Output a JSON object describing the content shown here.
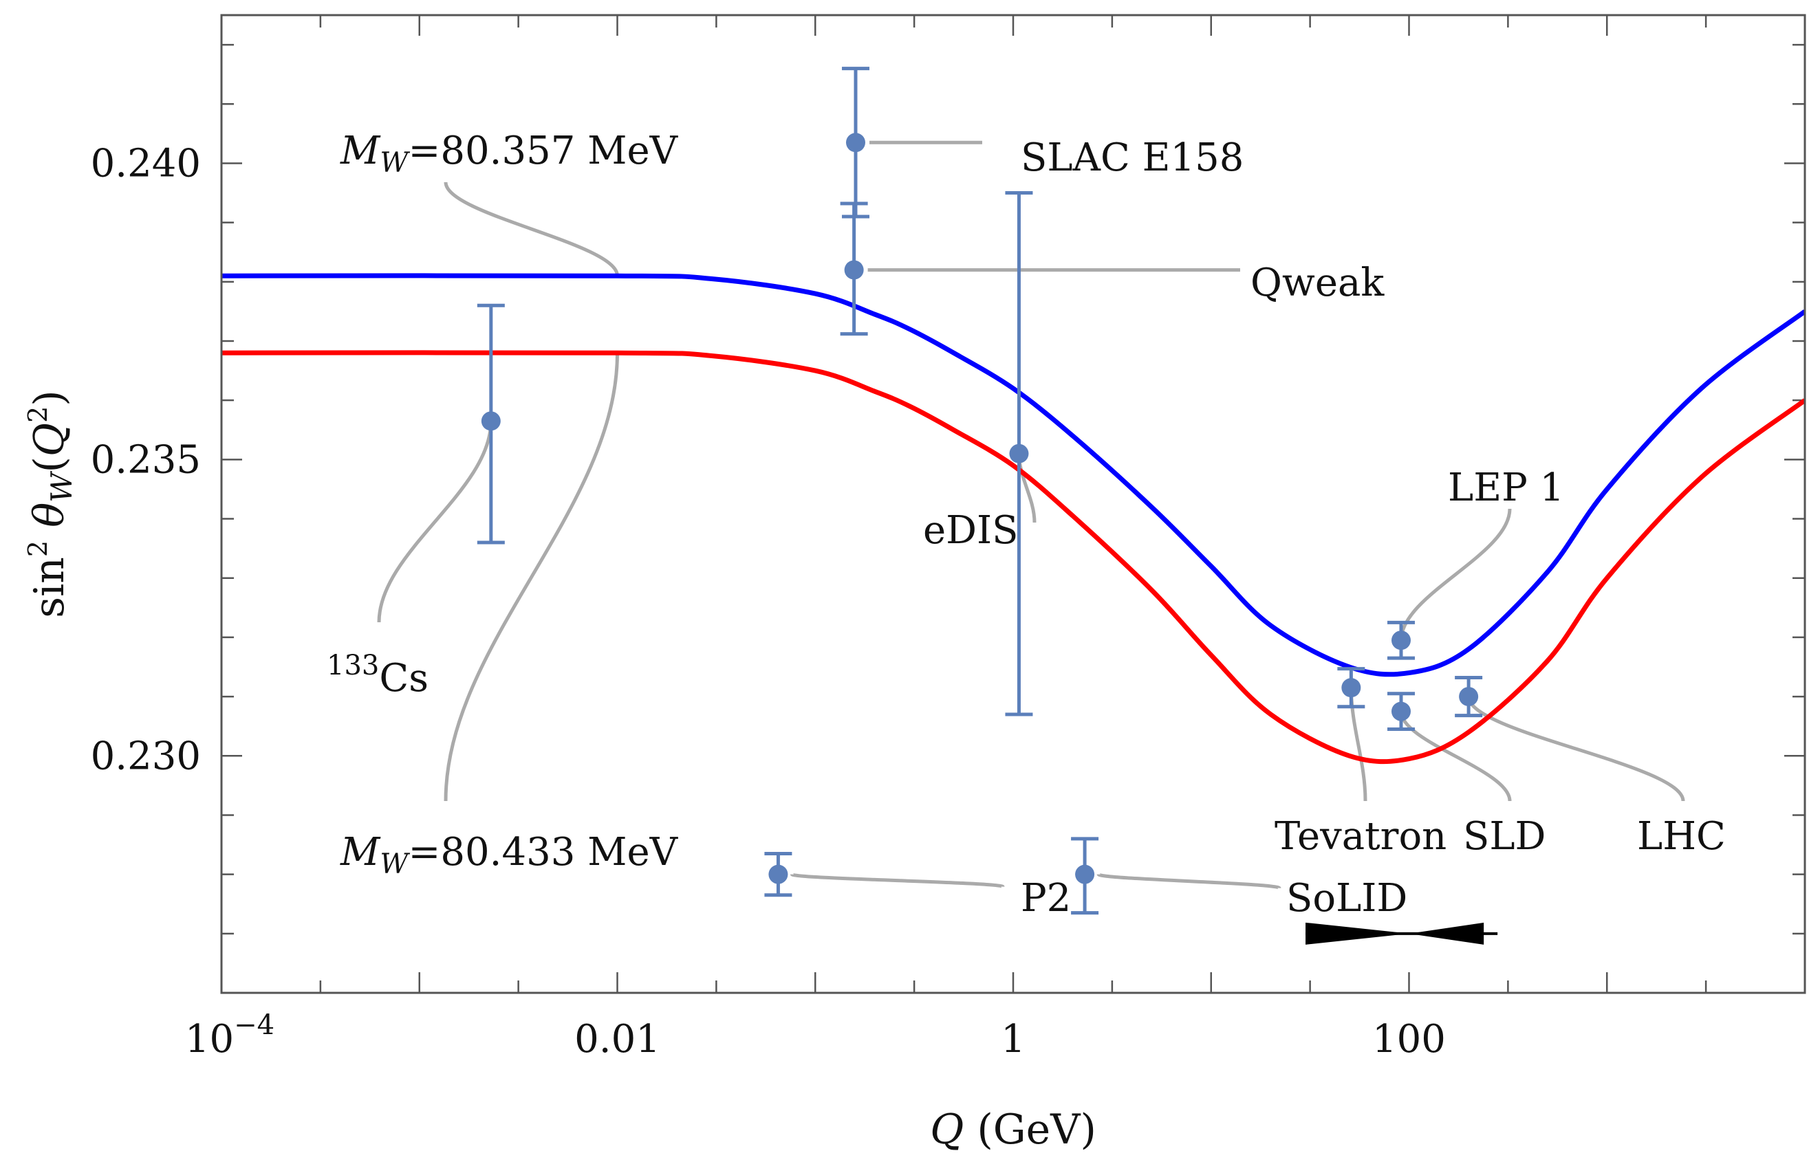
{
  "chart_data": {
    "type": "scatter",
    "title": "",
    "xlabel": "Q (GeV)",
    "ylabel": "sin² θW(Q²)",
    "xscale": "log",
    "xlim": [
      0.0001,
      10000
    ],
    "ylim": [
      0.226,
      0.2425
    ],
    "x_ticks": [
      {
        "value": 0.0001,
        "base": "10",
        "exp": "−4"
      },
      {
        "value": 0.01,
        "text": "0.01"
      },
      {
        "value": 1,
        "text": "1"
      },
      {
        "value": 100,
        "text": "100"
      }
    ],
    "y_ticks": [
      {
        "value": 0.23,
        "text": "0.230"
      },
      {
        "value": 0.235,
        "text": "0.235"
      },
      {
        "value": 0.24,
        "text": "0.240"
      }
    ],
    "curves": [
      {
        "name": "M_W=80.357 MeV",
        "math": "M",
        "math_sub": "W",
        "value_text": "=80.357 MeV",
        "color": "#0000ff",
        "low_Q_value": 0.2381,
        "points": [
          [
            0.0001,
            0.2381
          ],
          [
            0.01,
            0.2381
          ],
          [
            0.03,
            0.23805
          ],
          [
            0.1,
            0.2378
          ],
          [
            0.2,
            0.23745
          ],
          [
            0.3,
            0.2372
          ],
          [
            0.5,
            0.2368
          ],
          [
            1,
            0.2362
          ],
          [
            2,
            0.2354
          ],
          [
            5,
            0.2342
          ],
          [
            10,
            0.2332
          ],
          [
            20,
            0.2322
          ],
          [
            50,
            0.2315
          ],
          [
            100,
            0.2314
          ],
          [
            200,
            0.2318
          ],
          [
            500,
            0.2331
          ],
          [
            1000,
            0.2345
          ],
          [
            3000,
            0.2362
          ],
          [
            10000,
            0.2375
          ]
        ]
      },
      {
        "name": "M_W=80.433 MeV",
        "math": "M",
        "math_sub": "W",
        "value_text": "=80.433 MeV",
        "color": "#ff0000",
        "low_Q_value": 0.2368,
        "points": [
          [
            0.0001,
            0.2368
          ],
          [
            0.01,
            0.2368
          ],
          [
            0.03,
            0.23675
          ],
          [
            0.1,
            0.2365
          ],
          [
            0.2,
            0.23615
          ],
          [
            0.3,
            0.2359
          ],
          [
            0.5,
            0.2355
          ],
          [
            1,
            0.2349
          ],
          [
            2,
            0.23405
          ],
          [
            5,
            0.2328
          ],
          [
            10,
            0.2317
          ],
          [
            20,
            0.2307
          ],
          [
            50,
            0.23
          ],
          [
            100,
            0.22995
          ],
          [
            200,
            0.2304
          ],
          [
            500,
            0.2316
          ],
          [
            1000,
            0.233
          ],
          [
            3000,
            0.2347
          ],
          [
            10000,
            0.236
          ]
        ]
      }
    ],
    "points": [
      {
        "name": "¹³³Cs",
        "sup": "133",
        "text": "Cs",
        "x": 0.0023,
        "y": 0.23565,
        "yerr_low": 0.2336,
        "yerr_high": 0.2376,
        "label_anchor_x": 0.00055,
        "label_anchor_y": 0.2322
      },
      {
        "name": "SLAC E158",
        "text": "SLAC E158",
        "x": 0.16,
        "y": 0.24035,
        "yerr_low": 0.2391,
        "yerr_high": 0.2416,
        "label_anchor_x": 0.6,
        "label_anchor_y": 0.24035
      },
      {
        "name": "Qweak",
        "text": "Qweak",
        "x": 0.157,
        "y": 0.2382,
        "yerr_low": 0.23712,
        "yerr_high": 0.23932,
        "label_anchor_x": 20,
        "label_anchor_y": 0.2382
      },
      {
        "name": "eDIS",
        "text": "eDIS",
        "x": 1.07,
        "y": 0.2351,
        "yerr_low": 0.2307,
        "yerr_high": 0.2395,
        "label_anchor_x": 0.45,
        "label_anchor_y": 0.234
      },
      {
        "name": "P2",
        "text": "P2",
        "x": 0.065,
        "y": 0.228,
        "yerr_low": 0.22765,
        "yerr_high": 0.22835,
        "label_anchor_x": 0.5,
        "label_anchor_y": 0.22775
      },
      {
        "name": "SoLID",
        "text": "SoLID",
        "x": 2.3,
        "y": 0.228,
        "yerr_low": 0.22735,
        "yerr_high": 0.2286,
        "label_anchor_x": 4.5,
        "label_anchor_y": 0.22775
      },
      {
        "name": "LEP 1",
        "text": "LEP 1",
        "x": 91.2,
        "y": 0.23195,
        "yerr_low": 0.23165,
        "yerr_high": 0.23225,
        "label_anchor_x": 47,
        "label_anchor_y": 0.2342
      },
      {
        "name": "Tevatron",
        "text": "Tevatron",
        "x": 51,
        "y": 0.23115,
        "yerr_low": 0.23083,
        "yerr_high": 0.23147,
        "label_anchor_x": 11,
        "label_anchor_y": 0.2292
      },
      {
        "name": "SLD",
        "text": "SLD",
        "x": 91.2,
        "y": 0.23075,
        "yerr_low": 0.23045,
        "yerr_high": 0.23105,
        "label_anchor_x": 47,
        "label_anchor_y": 0.2292
      },
      {
        "name": "LHC",
        "text": "LHC",
        "x": 200,
        "y": 0.231,
        "yerr_low": 0.23068,
        "yerr_high": 0.23132,
        "label_anchor_x": 450,
        "label_anchor_y": 0.2292
      }
    ],
    "bowtie": {
      "x_left": 30,
      "x_center": 100,
      "x_right": 280,
      "y": 0.227
    }
  }
}
